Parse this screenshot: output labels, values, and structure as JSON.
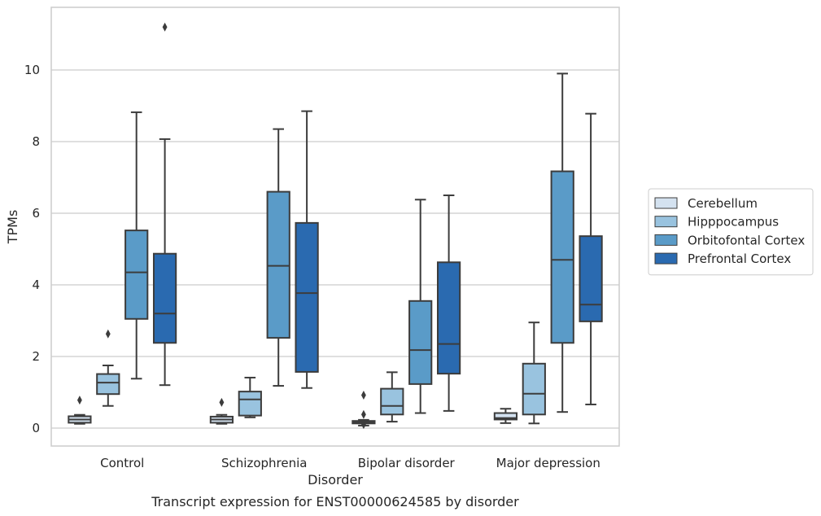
{
  "chart_data": {
    "type": "box",
    "caption": "Transcript expression for ENST00000624585 by disorder",
    "xlabel": "Disorder",
    "ylabel": "TPMs",
    "ylim": [
      -0.5,
      11.75
    ],
    "yticks": [
      0,
      2,
      4,
      6,
      8,
      10
    ],
    "grid": true,
    "legend_position": "right",
    "categories": [
      "Control",
      "Schizophrenia",
      "Bipolar disorder",
      "Major depression"
    ],
    "series": [
      {
        "name": "Cerebellum",
        "color": "#d4e2f0",
        "boxes": [
          {
            "whislo": 0.12,
            "q1": 0.15,
            "med": 0.24,
            "q3": 0.33,
            "whishi": 0.37,
            "fliers": [
              0.78
            ]
          },
          {
            "whislo": 0.12,
            "q1": 0.15,
            "med": 0.24,
            "q3": 0.32,
            "whishi": 0.37,
            "fliers": [
              0.72
            ]
          },
          {
            "whislo": 0.07,
            "q1": 0.13,
            "med": 0.17,
            "q3": 0.2,
            "whishi": 0.23,
            "fliers": [
              0.92,
              0.38,
              0.1
            ]
          },
          {
            "whislo": 0.14,
            "q1": 0.24,
            "med": 0.28,
            "q3": 0.42,
            "whishi": 0.54,
            "fliers": []
          }
        ]
      },
      {
        "name": "Hipppocampus",
        "color": "#99c3df",
        "boxes": [
          {
            "whislo": 0.62,
            "q1": 0.95,
            "med": 1.27,
            "q3": 1.51,
            "whishi": 1.75,
            "fliers": [
              2.63
            ]
          },
          {
            "whislo": 0.3,
            "q1": 0.35,
            "med": 0.8,
            "q3": 1.02,
            "whishi": 1.41,
            "fliers": []
          },
          {
            "whislo": 0.18,
            "q1": 0.38,
            "med": 0.62,
            "q3": 1.1,
            "whishi": 1.56,
            "fliers": []
          },
          {
            "whislo": 0.13,
            "q1": 0.38,
            "med": 0.96,
            "q3": 1.8,
            "whishi": 2.95,
            "fliers": []
          }
        ]
      },
      {
        "name": "Orbitofontal Cortex",
        "color": "#5a9bc8",
        "boxes": [
          {
            "whislo": 1.38,
            "q1": 3.05,
            "med": 4.35,
            "q3": 5.52,
            "whishi": 8.82,
            "fliers": []
          },
          {
            "whislo": 1.18,
            "q1": 2.52,
            "med": 4.53,
            "q3": 6.6,
            "whishi": 8.35,
            "fliers": []
          },
          {
            "whislo": 0.42,
            "q1": 1.23,
            "med": 2.18,
            "q3": 3.55,
            "whishi": 6.38,
            "fliers": []
          },
          {
            "whislo": 0.45,
            "q1": 2.38,
            "med": 4.7,
            "q3": 7.17,
            "whishi": 9.9,
            "fliers": []
          }
        ]
      },
      {
        "name": "Prefrontal Cortex",
        "color": "#2a6ab0",
        "boxes": [
          {
            "whislo": 1.2,
            "q1": 2.38,
            "med": 3.2,
            "q3": 4.87,
            "whishi": 8.07,
            "fliers": [
              11.2
            ]
          },
          {
            "whislo": 1.12,
            "q1": 1.57,
            "med": 3.77,
            "q3": 5.73,
            "whishi": 8.85,
            "fliers": []
          },
          {
            "whislo": 0.48,
            "q1": 1.52,
            "med": 2.35,
            "q3": 4.63,
            "whishi": 6.5,
            "fliers": []
          },
          {
            "whislo": 0.66,
            "q1": 2.98,
            "med": 3.45,
            "q3": 5.36,
            "whishi": 8.78,
            "fliers": []
          }
        ]
      }
    ]
  }
}
